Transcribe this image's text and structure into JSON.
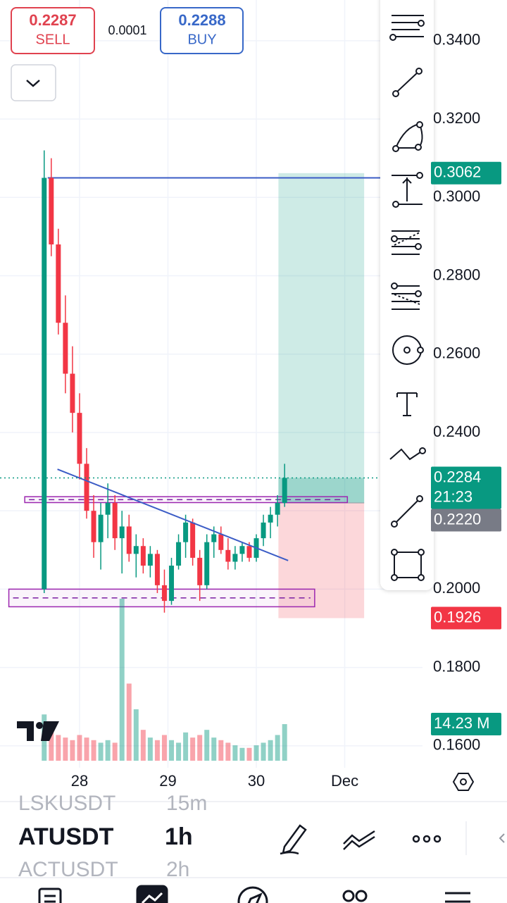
{
  "header": {
    "sell_price": "0.2287",
    "sell_label": "SELL",
    "spread": "0.0001",
    "buy_price": "0.2288",
    "buy_label": "BUY"
  },
  "chart_data": {
    "type": "candlestick",
    "x": [
      27.6,
      27.68,
      27.76,
      27.84,
      27.92,
      28.0,
      28.08,
      28.16,
      28.24,
      28.32,
      28.4,
      28.48,
      28.56,
      28.64,
      28.72,
      28.8,
      28.88,
      28.96,
      29.04,
      29.12,
      29.2,
      29.28,
      29.36,
      29.44,
      29.52,
      29.6,
      29.68,
      29.76,
      29.84,
      29.92,
      30.0,
      30.08,
      30.16,
      30.24,
      30.32
    ],
    "open": [
      0.2,
      0.305,
      0.288,
      0.268,
      0.255,
      0.245,
      0.232,
      0.22,
      0.212,
      0.219,
      0.222,
      0.213,
      0.216,
      0.209,
      0.211,
      0.206,
      0.209,
      0.201,
      0.197,
      0.206,
      0.212,
      0.217,
      0.208,
      0.201,
      0.212,
      0.214,
      0.21,
      0.207,
      0.209,
      0.211,
      0.208,
      0.213,
      0.217,
      0.219,
      0.222
    ],
    "high": [
      0.312,
      0.31,
      0.292,
      0.275,
      0.262,
      0.25,
      0.236,
      0.224,
      0.222,
      0.227,
      0.224,
      0.22,
      0.219,
      0.214,
      0.213,
      0.211,
      0.21,
      0.205,
      0.208,
      0.214,
      0.219,
      0.218,
      0.21,
      0.214,
      0.216,
      0.216,
      0.213,
      0.211,
      0.212,
      0.212,
      0.214,
      0.219,
      0.221,
      0.224,
      0.232
    ],
    "low": [
      0.199,
      0.285,
      0.265,
      0.25,
      0.24,
      0.228,
      0.218,
      0.208,
      0.205,
      0.213,
      0.21,
      0.204,
      0.207,
      0.203,
      0.204,
      0.203,
      0.199,
      0.194,
      0.196,
      0.205,
      0.208,
      0.206,
      0.197,
      0.2,
      0.208,
      0.209,
      0.205,
      0.205,
      0.207,
      0.207,
      0.207,
      0.211,
      0.213,
      0.216,
      0.221
    ],
    "close": [
      0.305,
      0.288,
      0.268,
      0.255,
      0.245,
      0.232,
      0.22,
      0.212,
      0.219,
      0.222,
      0.213,
      0.216,
      0.209,
      0.211,
      0.206,
      0.209,
      0.201,
      0.197,
      0.206,
      0.212,
      0.217,
      0.208,
      0.201,
      0.212,
      0.214,
      0.21,
      0.207,
      0.209,
      0.211,
      0.208,
      0.213,
      0.217,
      0.219,
      0.222,
      0.2284
    ],
    "volume": [
      18,
      12,
      10,
      9,
      8,
      10,
      9,
      8,
      7,
      8,
      7,
      63,
      30,
      20,
      12,
      9,
      8,
      10,
      8,
      7,
      11,
      9,
      10,
      12,
      9,
      8,
      7,
      6,
      5,
      5,
      6,
      7,
      8,
      10,
      14.23
    ],
    "last_volume": {
      "value": 14.23,
      "label": "14.23 M"
    },
    "up_color": "#089981",
    "down_color": "#f23645",
    "xlim": [
      27.1,
      31.88
    ],
    "xticks": [
      28,
      29,
      30,
      {
        "value": 31,
        "label": "Dec"
      }
    ],
    "ylim": [
      0.1544,
      0.3504
    ],
    "yticks": [
      {
        "value": 0.34,
        "label": "0.3400"
      },
      {
        "value": 0.32,
        "label": "0.3200"
      },
      {
        "value": 0.3,
        "label": "0.3000"
      },
      {
        "value": 0.28,
        "label": "0.2800"
      },
      {
        "value": 0.26,
        "label": "0.2600"
      },
      {
        "value": 0.24,
        "label": "0.2400"
      },
      {
        "value": 0.22,
        "label": "0.2200"
      },
      {
        "value": 0.2,
        "label": "0.2000"
      },
      {
        "value": 0.18,
        "label": "0.1800"
      },
      {
        "value": 0.16,
        "label": "0.1600"
      }
    ],
    "grid": true,
    "last_price": {
      "value": 0.2284,
      "label": "0.2284"
    },
    "countdown": "21:23",
    "position": {
      "entry": {
        "value": 0.222,
        "label": "0.2220"
      },
      "target": {
        "value": 0.3062,
        "label": "0.3062"
      },
      "stop": {
        "value": 0.1926,
        "label": "0.1926"
      },
      "x": [
        30.25,
        31.22
      ]
    },
    "horizontal_line": {
      "y": 0.305,
      "x": [
        27.64,
        31.88
      ]
    },
    "trend_line": {
      "x": [
        27.75,
        30.36
      ],
      "y": [
        0.2306,
        0.2073
      ]
    },
    "zones": [
      {
        "x": [
          27.38,
          31.03
        ],
        "y": [
          0.2221,
          0.2236
        ]
      },
      {
        "x": [
          27.2,
          30.66
        ],
        "y": [
          0.1955,
          0.2
        ]
      }
    ]
  },
  "symbols": [
    {
      "symbol": "LSKUSDT",
      "interval": "15m"
    },
    {
      "symbol": "ATUSDT",
      "interval": "1h"
    },
    {
      "symbol": "ACTUSDT",
      "interval": "2h"
    }
  ]
}
